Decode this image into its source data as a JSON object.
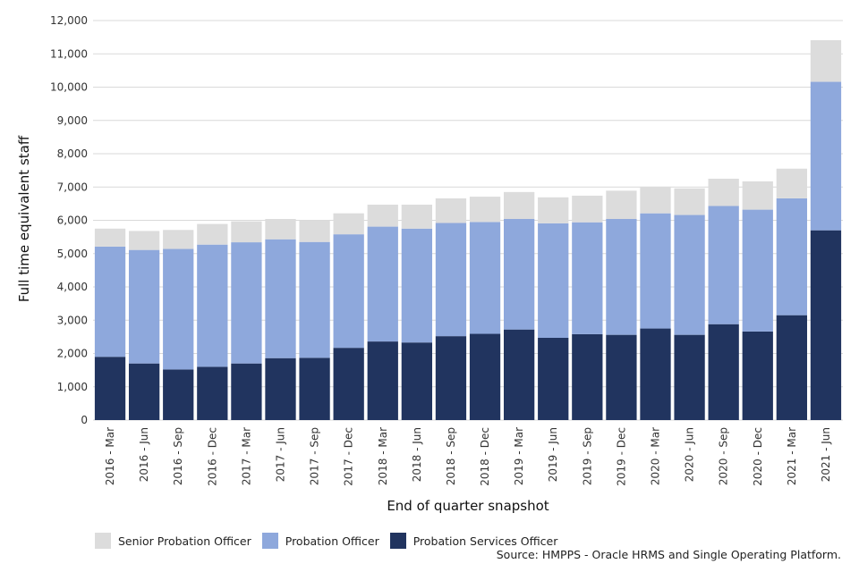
{
  "chart_data": {
    "type": "bar",
    "stacked": true,
    "xlabel": "End of quarter snapshot",
    "ylabel": "Full time equivalent staff",
    "ylim": [
      0,
      12000
    ],
    "yticks": [
      0,
      1000,
      2000,
      3000,
      4000,
      5000,
      6000,
      7000,
      8000,
      9000,
      10000,
      11000,
      12000
    ],
    "ytick_labels": [
      "0",
      "1,000",
      "2,000",
      "3,000",
      "4,000",
      "5,000",
      "6,000",
      "7,000",
      "8,000",
      "9,000",
      "10,000",
      "11,000",
      "12,000"
    ],
    "grid": "horizontal",
    "legend_position": "bottom-left",
    "categories": [
      "2016 - Mar",
      "2016 - Jun",
      "2016 - Sep",
      "2016 - Dec",
      "2017 - Mar",
      "2017 - Jun",
      "2017 - Sep",
      "2017 - Dec",
      "2018 - Mar",
      "2018 - Jun",
      "2018 - Sep",
      "2018 - Dec",
      "2019 - Mar",
      "2019 - Jun",
      "2019 - Sep",
      "2019 - Dec",
      "2020 - Mar",
      "2020 - Jun",
      "2020 - Sep",
      "2020 - Dec",
      "2021 - Mar",
      "2021 - Jun"
    ],
    "series": [
      {
        "name": "Probation Services Officer",
        "color": "#21345f",
        "values": [
          1900,
          1700,
          1520,
          1600,
          1700,
          1860,
          1870,
          2170,
          2360,
          2330,
          2520,
          2590,
          2720,
          2470,
          2580,
          2560,
          2750,
          2560,
          2880,
          2660,
          3150,
          5700
        ]
      },
      {
        "name": "Probation Officer",
        "color": "#8ea8dc",
        "values": [
          3310,
          3410,
          3620,
          3670,
          3640,
          3570,
          3480,
          3410,
          3450,
          3420,
          3400,
          3360,
          3320,
          3440,
          3360,
          3480,
          3460,
          3600,
          3550,
          3660,
          3510,
          4460
        ]
      },
      {
        "name": "Senior Probation Officer",
        "color": "#dcdcdc",
        "values": [
          540,
          570,
          570,
          620,
          630,
          610,
          650,
          630,
          660,
          720,
          740,
          760,
          810,
          780,
          800,
          850,
          800,
          800,
          820,
          850,
          890,
          1250
        ]
      }
    ],
    "legend_order": [
      "Senior Probation Officer",
      "Probation Officer",
      "Probation Services Officer"
    ]
  },
  "source_text": "Source: HMPPS - Oracle HRMS and Single Operating Platform."
}
